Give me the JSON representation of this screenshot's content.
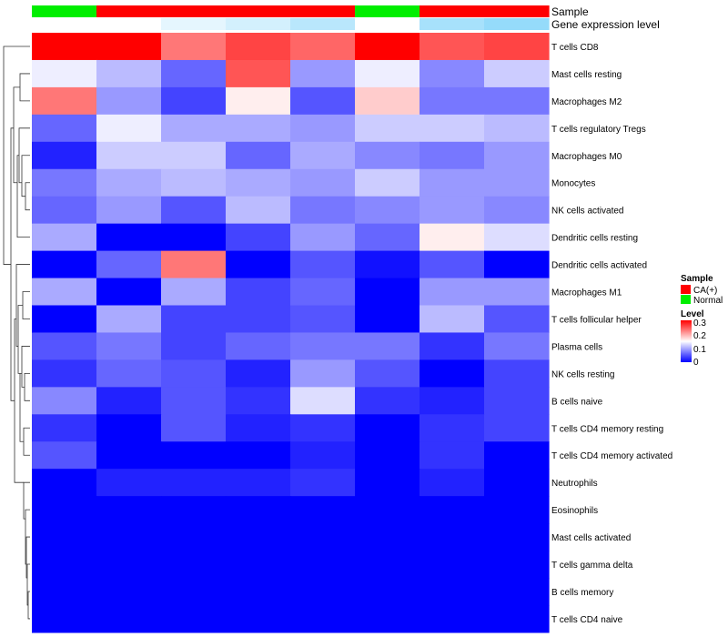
{
  "chart_data": {
    "type": "heatmap",
    "title": "",
    "annotation_tracks": [
      {
        "name": "Sample",
        "values": [
          "Normal",
          "CA(+)",
          "CA(+)",
          "CA(+)",
          "CA(+)",
          "Normal",
          "CA(+)",
          "CA(+)"
        ]
      },
      {
        "name": "Gene expression level",
        "values": [
          1.0,
          1.0,
          0.85,
          0.75,
          0.6,
          1.0,
          0.5,
          0.4
        ]
      }
    ],
    "rows": [
      "T cells CD8",
      "Mast cells resting",
      "Macrophages M2",
      "T cells regulatory  Tregs",
      "Macrophages M0",
      "Monocytes",
      "NK cells activated",
      "Dendritic cells resting",
      "Dendritic cells activated",
      "Macrophages M1",
      "T cells follicular helper",
      "Plasma cells",
      "NK cells resting",
      "B cells naive",
      "T cells CD4 memory resting",
      "T cells CD4 memory activated",
      "Neutrophils",
      "Eosinophils",
      "Mast cells activated",
      "T cells gamma delta",
      "B cells memory",
      "T cells CD4 naive"
    ],
    "values": [
      [
        0.3,
        0.3,
        0.23,
        0.26,
        0.24,
        0.3,
        0.25,
        0.26
      ],
      [
        0.14,
        0.11,
        0.06,
        0.25,
        0.09,
        0.14,
        0.08,
        0.12
      ],
      [
        0.23,
        0.09,
        0.04,
        0.16,
        0.05,
        0.18,
        0.07,
        0.07
      ],
      [
        0.06,
        0.14,
        0.1,
        0.1,
        0.09,
        0.12,
        0.12,
        0.11
      ],
      [
        0.02,
        0.12,
        0.12,
        0.06,
        0.1,
        0.08,
        0.07,
        0.09
      ],
      [
        0.07,
        0.1,
        0.11,
        0.1,
        0.09,
        0.12,
        0.09,
        0.09
      ],
      [
        0.06,
        0.09,
        0.05,
        0.11,
        0.07,
        0.08,
        0.09,
        0.08
      ],
      [
        0.1,
        0.0,
        0.0,
        0.04,
        0.09,
        0.06,
        0.16,
        0.13
      ],
      [
        0.0,
        0.06,
        0.23,
        0.0,
        0.05,
        0.01,
        0.05,
        0.0
      ],
      [
        0.1,
        0.0,
        0.1,
        0.04,
        0.06,
        0.0,
        0.09,
        0.09
      ],
      [
        0.0,
        0.1,
        0.04,
        0.04,
        0.05,
        0.0,
        0.11,
        0.05
      ],
      [
        0.05,
        0.07,
        0.04,
        0.06,
        0.07,
        0.07,
        0.03,
        0.07
      ],
      [
        0.03,
        0.06,
        0.05,
        0.02,
        0.09,
        0.05,
        0.0,
        0.04
      ],
      [
        0.08,
        0.02,
        0.05,
        0.03,
        0.13,
        0.03,
        0.02,
        0.04
      ],
      [
        0.03,
        0.0,
        0.05,
        0.02,
        0.03,
        0.0,
        0.03,
        0.04
      ],
      [
        0.05,
        0.0,
        0.0,
        0.0,
        0.02,
        0.0,
        0.03,
        0.0
      ],
      [
        0.0,
        0.02,
        0.02,
        0.02,
        0.03,
        0.0,
        0.02,
        0.0
      ],
      [
        0.0,
        0.0,
        0.0,
        0.0,
        0.0,
        0.0,
        0.0,
        0.0
      ],
      [
        0.0,
        0.0,
        0.0,
        0.0,
        0.0,
        0.0,
        0.0,
        0.0
      ],
      [
        0.0,
        0.0,
        0.0,
        0.0,
        0.0,
        0.0,
        0.0,
        0.0
      ],
      [
        0.0,
        0.0,
        0.0,
        0.0,
        0.0,
        0.0,
        0.0,
        0.0
      ],
      [
        0.0,
        0.0,
        0.0,
        0.0,
        0.0,
        0.0,
        0.0,
        0.0
      ]
    ],
    "color_scale": {
      "low": "#0000ff",
      "mid": "#ffffff",
      "high": "#ff0000",
      "range": [
        0,
        0.3
      ]
    },
    "legend": {
      "sample": {
        "title": "Sample",
        "items": [
          {
            "label": "CA(+)",
            "color": "#ff0000"
          },
          {
            "label": "Normal",
            "color": "#00ee00"
          }
        ]
      },
      "level": {
        "title": "Level",
        "ticks": [
          "0.3",
          "0.2",
          "0.1",
          "0"
        ]
      },
      "placement": "right"
    },
    "expression_colors": {
      "low": "#4fc3f7",
      "high": "#ffffff"
    },
    "dendrogram": "left"
  }
}
